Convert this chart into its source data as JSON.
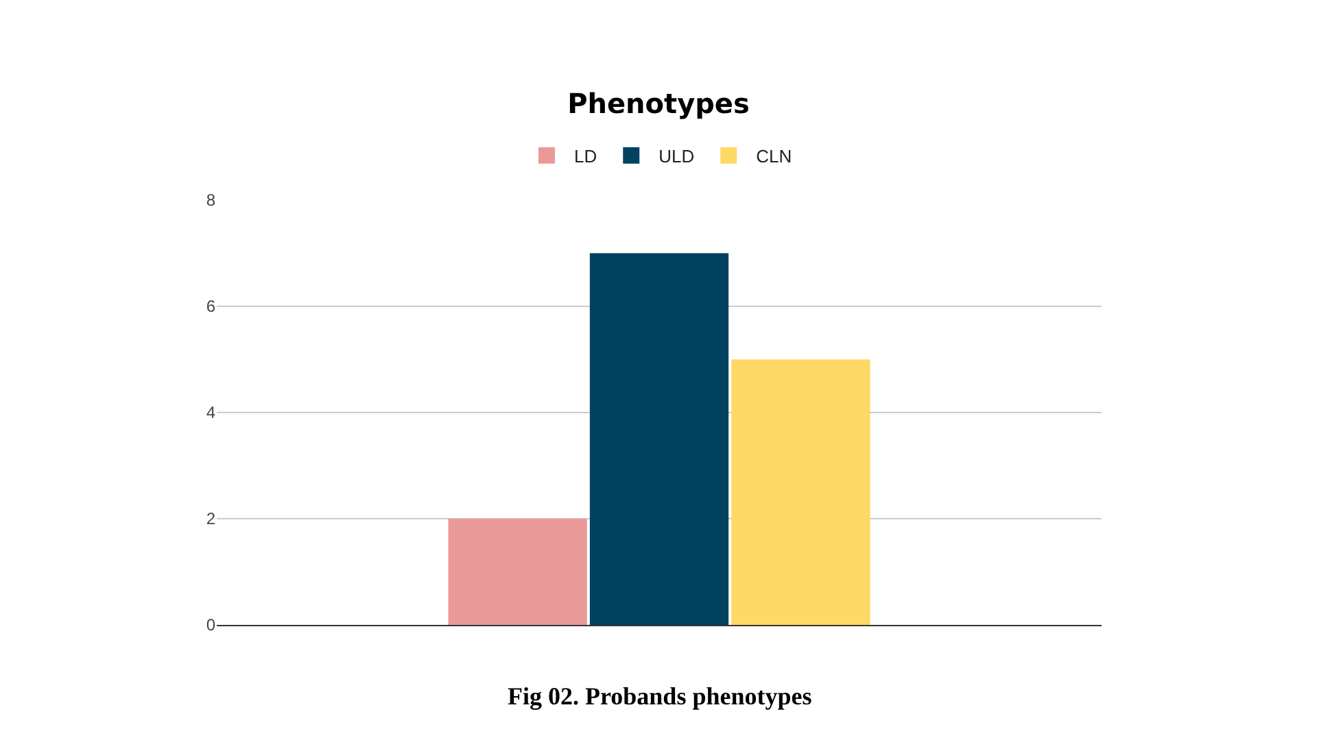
{
  "chart_data": {
    "type": "bar",
    "title": "Phenotypes",
    "categories": [
      null
    ],
    "series": [
      {
        "name": "LD",
        "color": "#ea9999",
        "values": [
          2
        ]
      },
      {
        "name": "ULD",
        "color": "#01425e",
        "values": [
          7
        ]
      },
      {
        "name": "CLN",
        "color": "#ffd966",
        "values": [
          5
        ]
      }
    ],
    "ylim": [
      0,
      8
    ],
    "yticks": [
      0,
      2,
      4,
      6,
      8
    ],
    "grid": "y",
    "legend": "top",
    "tick_labels": "y",
    "annotations": [
      "Fig 02. Probands phenotypes"
    ]
  }
}
